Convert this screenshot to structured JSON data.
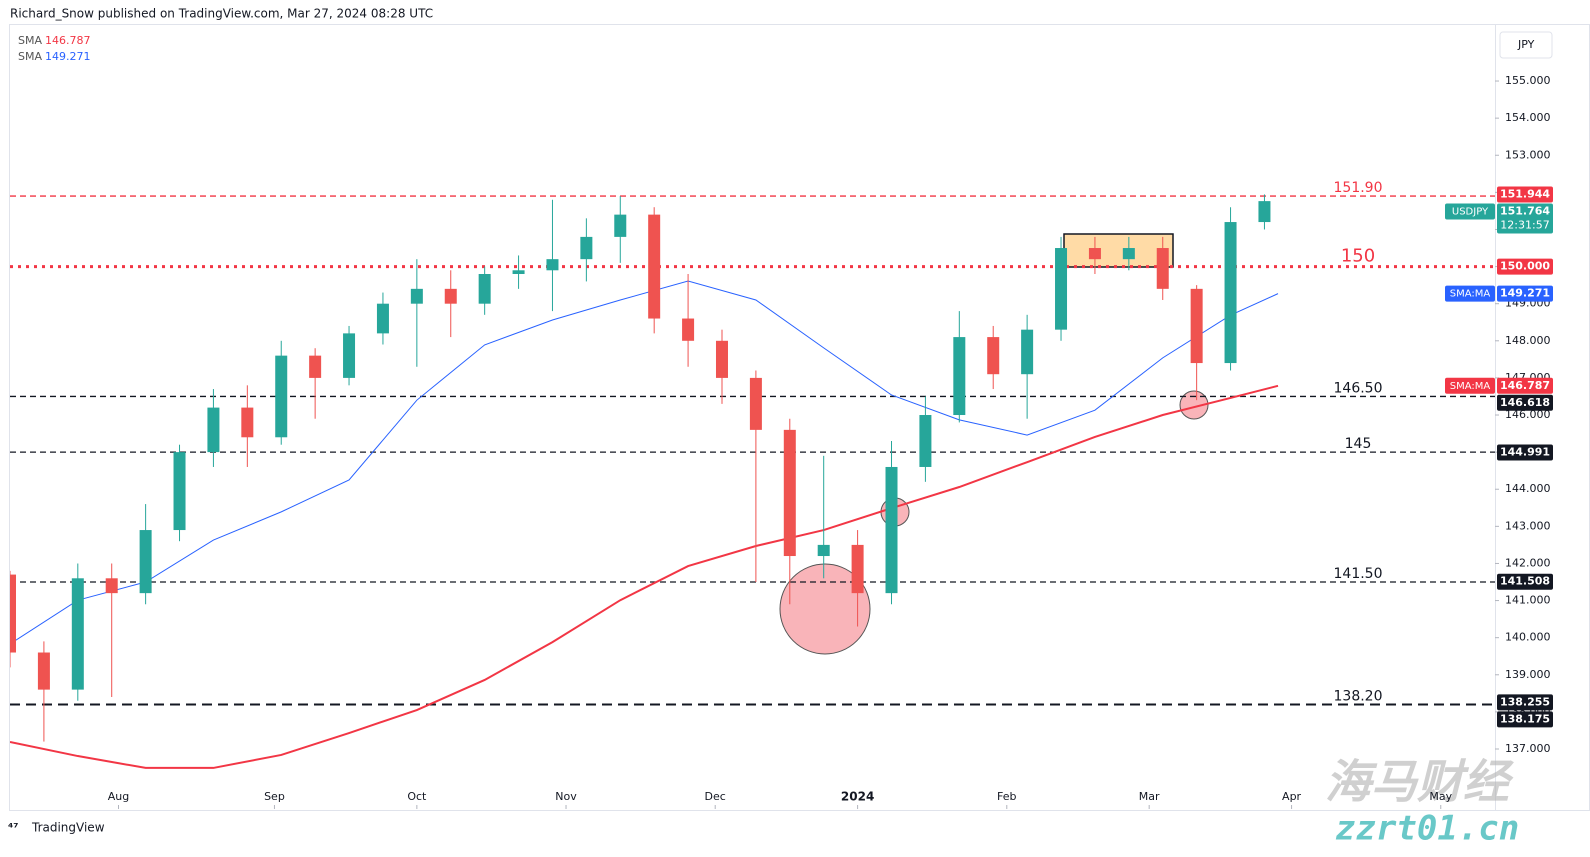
{
  "header": {
    "publisher": "Richard_Snow published on TradingView.com, Mar 27, 2024 08:28 UTC"
  },
  "chart_data": {
    "type": "candlestick",
    "symbol": "USDJPY",
    "currency": "JPY",
    "countdown": "12:31:57",
    "up_color": "#26a69a",
    "down_color": "#ef5350",
    "x": [
      0,
      5,
      10,
      15,
      20,
      25,
      30,
      35,
      40,
      45,
      50,
      55,
      60,
      65,
      70,
      75,
      80,
      85,
      90,
      95,
      100,
      105,
      110,
      115,
      120,
      125,
      130,
      135,
      140,
      145,
      150,
      155,
      160,
      165,
      170,
      175,
      180,
      185
    ],
    "open": [
      141.7,
      139.6,
      138.6,
      141.6,
      141.2,
      142.9,
      145.0,
      146.2,
      145.4,
      147.6,
      147.0,
      148.2,
      149.0,
      149.4,
      149.0,
      149.8,
      149.9,
      150.2,
      150.8,
      151.4,
      148.6,
      148.0,
      147.0,
      145.6,
      142.2,
      142.5,
      141.2,
      144.6,
      146.0,
      148.1,
      147.1,
      148.3,
      150.5,
      150.2,
      150.5,
      149.4,
      147.4,
      151.2
    ],
    "high": [
      141.8,
      139.9,
      142.0,
      142.0,
      143.6,
      145.2,
      146.7,
      146.8,
      148.0,
      147.8,
      148.4,
      149.3,
      150.2,
      149.9,
      150.0,
      150.3,
      151.8,
      151.3,
      151.9,
      151.6,
      149.8,
      148.3,
      147.2,
      145.9,
      144.9,
      142.9,
      145.3,
      146.5,
      148.8,
      148.4,
      148.7,
      150.8,
      150.8,
      150.8,
      150.8,
      149.5,
      151.6,
      151.944
    ],
    "low": [
      139.2,
      137.2,
      138.3,
      138.4,
      140.9,
      142.6,
      144.6,
      144.6,
      145.2,
      145.9,
      146.8,
      147.9,
      147.3,
      148.1,
      148.7,
      149.4,
      148.8,
      149.6,
      150.1,
      148.2,
      147.3,
      146.3,
      141.5,
      140.9,
      141.6,
      140.3,
      140.9,
      144.2,
      145.8,
      146.7,
      145.9,
      148.0,
      149.8,
      149.9,
      149.1,
      146.4,
      147.2,
      151.0
    ],
    "close": [
      139.6,
      138.6,
      141.6,
      141.2,
      142.9,
      145.0,
      146.2,
      145.4,
      147.6,
      147.0,
      148.2,
      149.0,
      149.4,
      149.0,
      149.8,
      149.9,
      150.2,
      150.8,
      151.4,
      148.6,
      148.0,
      147.0,
      145.6,
      142.2,
      142.5,
      141.2,
      144.6,
      146.0,
      148.1,
      147.1,
      148.3,
      150.5,
      150.2,
      150.5,
      149.4,
      147.4,
      151.2,
      151.764
    ],
    "series": [
      {
        "name": "SMA",
        "tag": "SMA:MA",
        "color": "#f23645",
        "x": [
          0,
          10,
          20,
          30,
          40,
          50,
          60,
          70,
          80,
          90,
          100,
          110,
          120,
          130,
          140,
          150,
          160,
          170,
          180,
          187
        ],
        "values": [
          137.19,
          136.81,
          136.49,
          136.49,
          136.84,
          137.43,
          138.05,
          138.86,
          139.88,
          141.01,
          141.93,
          142.47,
          142.9,
          143.49,
          144.06,
          144.73,
          145.41,
          146.0,
          146.46,
          146.787
        ]
      },
      {
        "name": "SMA",
        "tag": "SMA:MA",
        "color": "#2962ff",
        "x": [
          0,
          10,
          20,
          30,
          40,
          50,
          60,
          70,
          80,
          90,
          100,
          110,
          120,
          130,
          140,
          150,
          160,
          170,
          180,
          187
        ],
        "values": [
          139.83,
          141.01,
          141.5,
          142.63,
          143.39,
          144.25,
          146.4,
          147.89,
          148.56,
          149.1,
          149.61,
          149.1,
          147.81,
          146.54,
          145.87,
          145.46,
          146.13,
          147.54,
          148.69,
          149.271
        ]
      }
    ],
    "levels": [
      {
        "value": 151.9,
        "label": "151.90",
        "color": "#f23645",
        "style": "dashed"
      },
      {
        "value": 150,
        "color": "#f23645",
        "style": "dotted"
      },
      {
        "value": 146.5,
        "label": "146.50",
        "color": "#131722",
        "style": "dashed"
      },
      {
        "value": 145,
        "color": "#131722",
        "style": "dashed"
      },
      {
        "value": 141.5,
        "label": "141.50",
        "color": "#131722",
        "style": "dashed"
      },
      {
        "value": 138.2,
        "label": "138.20",
        "color": "#131722",
        "style": "long-dashed"
      }
    ],
    "price_tags": [
      {
        "value": 151.944,
        "color": "#f23645"
      },
      {
        "value": 150,
        "label": "150.000",
        "color": "#f23645"
      },
      {
        "value": 146.618,
        "color": "#131722"
      },
      {
        "value": 144.991,
        "color": "#131722"
      },
      {
        "value": 141.508,
        "color": "#131722"
      },
      {
        "value": 138.255,
        "color": "#131722"
      },
      {
        "value": 138.175,
        "color": "#131722"
      }
    ],
    "xlim": [
      0,
      219
    ],
    "ylim": [
      135.41,
      156.51
    ],
    "xticks": [
      {
        "value": 16,
        "label": "Aug"
      },
      {
        "value": 39,
        "label": "Sep"
      },
      {
        "value": 60,
        "label": "Oct"
      },
      {
        "value": 82,
        "label": "Nov"
      },
      {
        "value": 104,
        "label": "Dec"
      },
      {
        "value": 125,
        "label": "2024"
      },
      {
        "value": 147,
        "label": "Feb"
      },
      {
        "value": 168,
        "label": "Mar"
      },
      {
        "value": 189,
        "label": "Apr"
      },
      {
        "value": 211,
        "label": "May"
      }
    ],
    "yticks": [
      {
        "value": 137,
        "label": "137.000"
      },
      {
        "value": 138,
        "label": "138.000"
      },
      {
        "value": 139,
        "label": "139.000"
      },
      {
        "value": 140,
        "label": "140.000"
      },
      {
        "value": 141,
        "label": "141.000"
      },
      {
        "value": 142,
        "label": "142.000"
      },
      {
        "value": 143,
        "label": "143.000"
      },
      {
        "value": 144,
        "label": "144.000"
      },
      {
        "value": 145,
        "label": "145.000"
      },
      {
        "value": 146,
        "label": "146.000"
      },
      {
        "value": 147,
        "label": "147.000"
      },
      {
        "value": 148,
        "label": "148.000"
      },
      {
        "value": 149,
        "label": "149.000"
      },
      {
        "value": 150,
        "label": "150.000"
      },
      {
        "value": 151,
        "label": "151.000"
      },
      {
        "value": 152,
        "label": "152.000"
      },
      {
        "value": 153,
        "label": "153.000"
      },
      {
        "value": 154,
        "label": "154.000"
      },
      {
        "value": 155,
        "label": "155.000"
      }
    ]
  },
  "footer": {
    "brand": "TradingView"
  },
  "watermark": {
    "name": "海马财经",
    "site": "zzrt01.cn"
  }
}
